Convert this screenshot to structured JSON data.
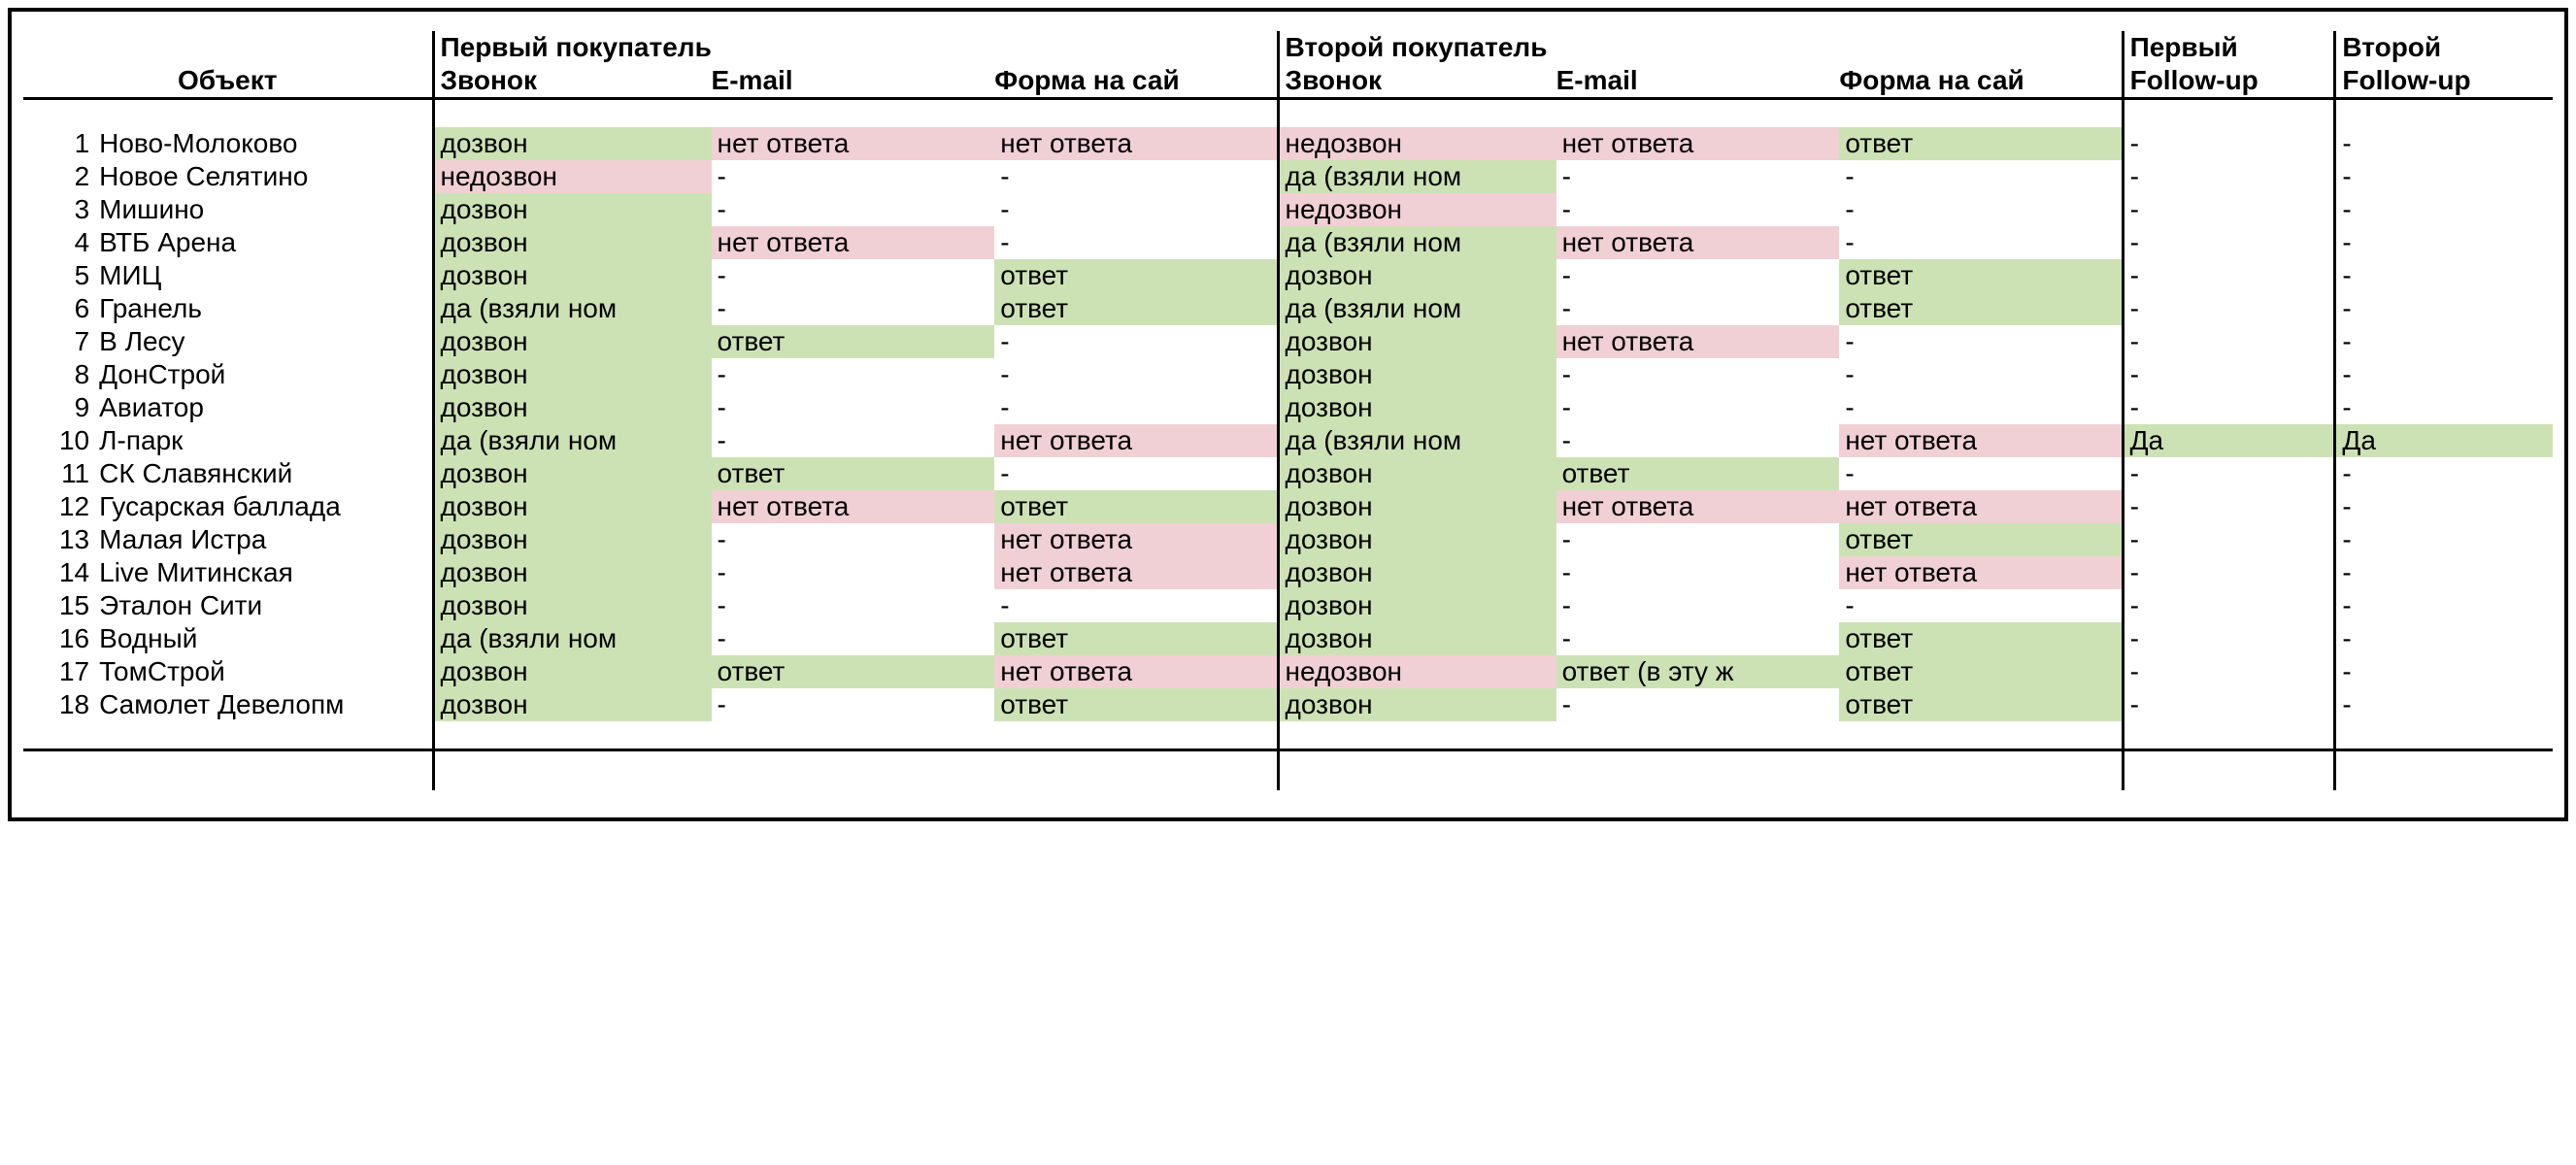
{
  "colors": {
    "green": "#cde2b4",
    "pink": "#f0d0d4",
    "border": "#000000",
    "background": "#ffffff",
    "text": "#000000"
  },
  "typography": {
    "font_family": "Arial",
    "header_weight": "bold",
    "body_weight": "normal",
    "fontsize_pt": 21
  },
  "header": {
    "obj": "Объект",
    "buyer1": "Первый покупатель",
    "buyer2": "Второй покупатель",
    "call": "Звонок",
    "email": "E-mail",
    "form": "Форма на сай",
    "fu1_top": "Первый",
    "fu1_bot": "Follow-up",
    "fu2_top": "Второй",
    "fu2_bot": "Follow-up"
  },
  "legend": {
    "fill_meaning": {
      "g": "positive / answered",
      "p": "negative / no answer",
      "": "neutral / dash"
    }
  },
  "rows": [
    {
      "n": "1",
      "obj": "Ново-Молоково",
      "c1": {
        "t": "дозвон",
        "f": "g"
      },
      "e1": {
        "t": "нет ответа",
        "f": "p"
      },
      "f1": {
        "t": "нет ответа",
        "f": "p"
      },
      "c2": {
        "t": "недозвон",
        "f": "p"
      },
      "e2": {
        "t": "нет ответа",
        "f": "p"
      },
      "f2": {
        "t": "ответ",
        "f": "g"
      },
      "u1": {
        "t": "-",
        "f": ""
      },
      "u2": {
        "t": "-",
        "f": ""
      }
    },
    {
      "n": "2",
      "obj": "Новое Селятино",
      "c1": {
        "t": "недозвон",
        "f": "p"
      },
      "e1": {
        "t": "-",
        "f": ""
      },
      "f1": {
        "t": "-",
        "f": ""
      },
      "c2": {
        "t": "да (взяли ном",
        "f": "g"
      },
      "e2": {
        "t": "-",
        "f": ""
      },
      "f2": {
        "t": "-",
        "f": ""
      },
      "u1": {
        "t": "-",
        "f": ""
      },
      "u2": {
        "t": "-",
        "f": ""
      }
    },
    {
      "n": "3",
      "obj": "Мишино",
      "c1": {
        "t": "дозвон",
        "f": "g"
      },
      "e1": {
        "t": "-",
        "f": ""
      },
      "f1": {
        "t": "-",
        "f": ""
      },
      "c2": {
        "t": "недозвон",
        "f": "p"
      },
      "e2": {
        "t": "-",
        "f": ""
      },
      "f2": {
        "t": "-",
        "f": ""
      },
      "u1": {
        "t": "-",
        "f": ""
      },
      "u2": {
        "t": "-",
        "f": ""
      }
    },
    {
      "n": "4",
      "obj": "ВТБ Арена",
      "c1": {
        "t": "дозвон",
        "f": "g"
      },
      "e1": {
        "t": "нет ответа",
        "f": "p"
      },
      "f1": {
        "t": "-",
        "f": ""
      },
      "c2": {
        "t": "да (взяли ном",
        "f": "g"
      },
      "e2": {
        "t": "нет ответа",
        "f": "p"
      },
      "f2": {
        "t": "-",
        "f": ""
      },
      "u1": {
        "t": "-",
        "f": ""
      },
      "u2": {
        "t": "-",
        "f": ""
      }
    },
    {
      "n": "5",
      "obj": "МИЦ",
      "c1": {
        "t": "дозвон",
        "f": "g"
      },
      "e1": {
        "t": "-",
        "f": ""
      },
      "f1": {
        "t": "ответ",
        "f": "g"
      },
      "c2": {
        "t": "дозвон",
        "f": "g"
      },
      "e2": {
        "t": "-",
        "f": ""
      },
      "f2": {
        "t": "ответ",
        "f": "g"
      },
      "u1": {
        "t": "-",
        "f": ""
      },
      "u2": {
        "t": "-",
        "f": ""
      }
    },
    {
      "n": "6",
      "obj": "Гранель",
      "c1": {
        "t": "да (взяли ном",
        "f": "g"
      },
      "e1": {
        "t": "-",
        "f": ""
      },
      "f1": {
        "t": "ответ",
        "f": "g"
      },
      "c2": {
        "t": "да (взяли ном",
        "f": "g"
      },
      "e2": {
        "t": "-",
        "f": ""
      },
      "f2": {
        "t": "ответ",
        "f": "g"
      },
      "u1": {
        "t": "-",
        "f": ""
      },
      "u2": {
        "t": "-",
        "f": ""
      }
    },
    {
      "n": "7",
      "obj": "В Лесу",
      "c1": {
        "t": "дозвон",
        "f": "g"
      },
      "e1": {
        "t": "ответ",
        "f": "g"
      },
      "f1": {
        "t": "-",
        "f": ""
      },
      "c2": {
        "t": "дозвон",
        "f": "g"
      },
      "e2": {
        "t": "нет ответа",
        "f": "p"
      },
      "f2": {
        "t": "-",
        "f": ""
      },
      "u1": {
        "t": "-",
        "f": ""
      },
      "u2": {
        "t": "-",
        "f": ""
      }
    },
    {
      "n": "8",
      "obj": "ДонСтрой",
      "c1": {
        "t": "дозвон",
        "f": "g"
      },
      "e1": {
        "t": "-",
        "f": ""
      },
      "f1": {
        "t": "-",
        "f": ""
      },
      "c2": {
        "t": "дозвон",
        "f": "g"
      },
      "e2": {
        "t": "-",
        "f": ""
      },
      "f2": {
        "t": "-",
        "f": ""
      },
      "u1": {
        "t": "-",
        "f": ""
      },
      "u2": {
        "t": "-",
        "f": ""
      }
    },
    {
      "n": "9",
      "obj": "Авиатор",
      "c1": {
        "t": "дозвон",
        "f": "g"
      },
      "e1": {
        "t": "-",
        "f": ""
      },
      "f1": {
        "t": "-",
        "f": ""
      },
      "c2": {
        "t": "дозвон",
        "f": "g"
      },
      "e2": {
        "t": "-",
        "f": ""
      },
      "f2": {
        "t": "-",
        "f": ""
      },
      "u1": {
        "t": "-",
        "f": ""
      },
      "u2": {
        "t": "-",
        "f": ""
      }
    },
    {
      "n": "10",
      "obj": "Л-парк",
      "c1": {
        "t": "да (взяли ном",
        "f": "g"
      },
      "e1": {
        "t": "-",
        "f": ""
      },
      "f1": {
        "t": "нет ответа",
        "f": "p"
      },
      "c2": {
        "t": "да (взяли ном",
        "f": "g"
      },
      "e2": {
        "t": "-",
        "f": ""
      },
      "f2": {
        "t": "нет ответа",
        "f": "p"
      },
      "u1": {
        "t": "Да",
        "f": "g"
      },
      "u2": {
        "t": "Да",
        "f": "g"
      }
    },
    {
      "n": "11",
      "obj": "СК Славянский",
      "c1": {
        "t": "дозвон",
        "f": "g"
      },
      "e1": {
        "t": "ответ",
        "f": "g"
      },
      "f1": {
        "t": "-",
        "f": ""
      },
      "c2": {
        "t": "дозвон",
        "f": "g"
      },
      "e2": {
        "t": "ответ",
        "f": "g"
      },
      "f2": {
        "t": "-",
        "f": ""
      },
      "u1": {
        "t": "-",
        "f": ""
      },
      "u2": {
        "t": "-",
        "f": ""
      }
    },
    {
      "n": "12",
      "obj": "Гусарская баллада",
      "c1": {
        "t": "дозвон",
        "f": "g"
      },
      "e1": {
        "t": "нет ответа",
        "f": "p"
      },
      "f1": {
        "t": "ответ",
        "f": "g"
      },
      "c2": {
        "t": "дозвон",
        "f": "g"
      },
      "e2": {
        "t": "нет ответа",
        "f": "p"
      },
      "f2": {
        "t": "нет ответа",
        "f": "p"
      },
      "u1": {
        "t": "-",
        "f": ""
      },
      "u2": {
        "t": "-",
        "f": ""
      }
    },
    {
      "n": "13",
      "obj": "Малая Истра",
      "c1": {
        "t": "дозвон",
        "f": "g"
      },
      "e1": {
        "t": "-",
        "f": ""
      },
      "f1": {
        "t": "нет ответа",
        "f": "p"
      },
      "c2": {
        "t": "дозвон",
        "f": "g"
      },
      "e2": {
        "t": "-",
        "f": ""
      },
      "f2": {
        "t": "ответ",
        "f": "g"
      },
      "u1": {
        "t": "-",
        "f": ""
      },
      "u2": {
        "t": "-",
        "f": ""
      }
    },
    {
      "n": "14",
      "obj": "Live Митинская",
      "c1": {
        "t": "дозвон",
        "f": "g"
      },
      "e1": {
        "t": "-",
        "f": ""
      },
      "f1": {
        "t": "нет ответа",
        "f": "p"
      },
      "c2": {
        "t": "дозвон",
        "f": "g"
      },
      "e2": {
        "t": "-",
        "f": ""
      },
      "f2": {
        "t": "нет ответа",
        "f": "p"
      },
      "u1": {
        "t": "-",
        "f": ""
      },
      "u2": {
        "t": "-",
        "f": ""
      }
    },
    {
      "n": "15",
      "obj": "Эталон Сити",
      "c1": {
        "t": "дозвон",
        "f": "g"
      },
      "e1": {
        "t": "-",
        "f": ""
      },
      "f1": {
        "t": "-",
        "f": ""
      },
      "c2": {
        "t": "дозвон",
        "f": "g"
      },
      "e2": {
        "t": "-",
        "f": ""
      },
      "f2": {
        "t": "-",
        "f": ""
      },
      "u1": {
        "t": "-",
        "f": ""
      },
      "u2": {
        "t": "-",
        "f": ""
      }
    },
    {
      "n": "16",
      "obj": "Водный",
      "c1": {
        "t": "да (взяли ном",
        "f": "g"
      },
      "e1": {
        "t": "-",
        "f": ""
      },
      "f1": {
        "t": "ответ",
        "f": "g"
      },
      "c2": {
        "t": "дозвон",
        "f": "g"
      },
      "e2": {
        "t": "-",
        "f": ""
      },
      "f2": {
        "t": "ответ",
        "f": "g"
      },
      "u1": {
        "t": "-",
        "f": ""
      },
      "u2": {
        "t": "-",
        "f": ""
      }
    },
    {
      "n": "17",
      "obj": "ТомСтрой",
      "c1": {
        "t": "дозвон",
        "f": "g"
      },
      "e1": {
        "t": "ответ",
        "f": "g"
      },
      "f1": {
        "t": "нет ответа",
        "f": "p"
      },
      "c2": {
        "t": "недозвон",
        "f": "p"
      },
      "e2": {
        "t": "ответ (в эту ж",
        "f": "g"
      },
      "f2": {
        "t": "ответ",
        "f": "g"
      },
      "u1": {
        "t": "-",
        "f": ""
      },
      "u2": {
        "t": "-",
        "f": ""
      }
    },
    {
      "n": "18",
      "obj": "Самолет Девелопм",
      "c1": {
        "t": "дозвон",
        "f": "g"
      },
      "e1": {
        "t": "-",
        "f": ""
      },
      "f1": {
        "t": "ответ",
        "f": "g"
      },
      "c2": {
        "t": "дозвон",
        "f": "g"
      },
      "e2": {
        "t": "-",
        "f": ""
      },
      "f2": {
        "t": "ответ",
        "f": "g"
      },
      "u1": {
        "t": "-",
        "f": ""
      },
      "u2": {
        "t": "-",
        "f": ""
      }
    }
  ]
}
